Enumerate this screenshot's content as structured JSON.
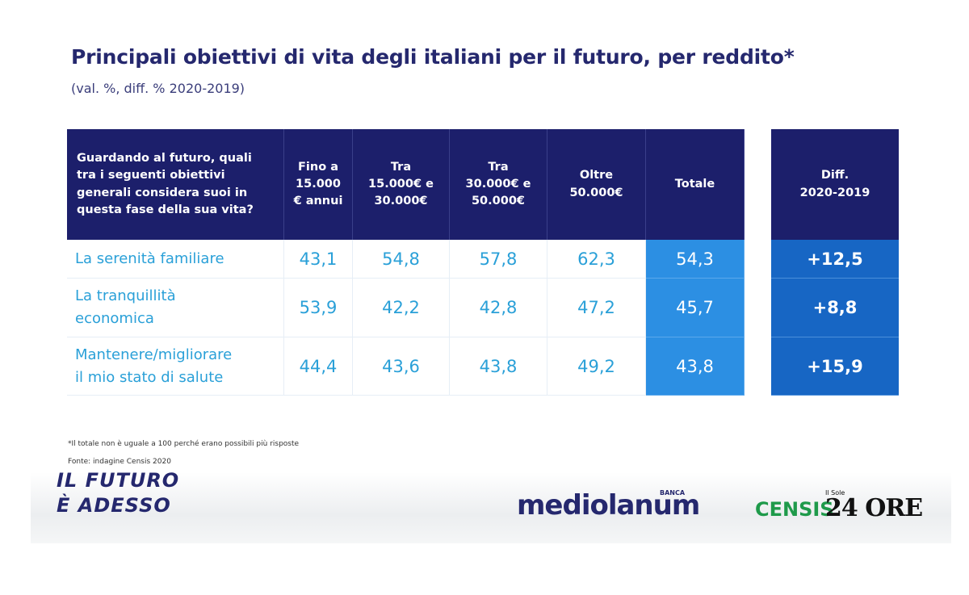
{
  "header": {
    "title": "Principali obiettivi di vita degli italiani per il futuro, per reddito*",
    "subtitle": "(val. %, diff. % 2020-2019)"
  },
  "table": {
    "columns": [
      "Guardando al futuro, quali\ntra i seguenti obiettivi\ngenerali considera suoi in\nquesta fase della sua vita?",
      "Fino a\n15.000\n€ annui",
      "Tra\n15.000€ e\n30.000€",
      "Tra\n30.000€ e\n50.000€",
      "Oltre\n50.000€",
      "Totale",
      "Diff.\n2020-2019"
    ],
    "rows": [
      [
        "La serenità familiare",
        "43,1",
        "54,8",
        "57,8",
        "62,3",
        "54,3",
        "+12,5"
      ],
      [
        "La tranquillità\neconomica",
        "53,9",
        "42,2",
        "42,8",
        "47,2",
        "45,7",
        "+8,8"
      ],
      [
        "Mantenere/migliorare\nil mio stato di salute",
        "44,4",
        "43,6",
        "43,8",
        "49,2",
        "43,8",
        "+15,9"
      ]
    ]
  },
  "footer": {
    "note": "*Il totale non è uguale a 100 perché erano possibili più risposte",
    "source": "Fonte: indagine Censis 2020",
    "motto": "IL FUTURO\nÈ ADESSO",
    "logos": {
      "mediolanum": "mediolanum",
      "banca": "BANCA",
      "censis": "CENSIS",
      "sole": "Il Sole",
      "ore": "24 ORE"
    }
  }
}
